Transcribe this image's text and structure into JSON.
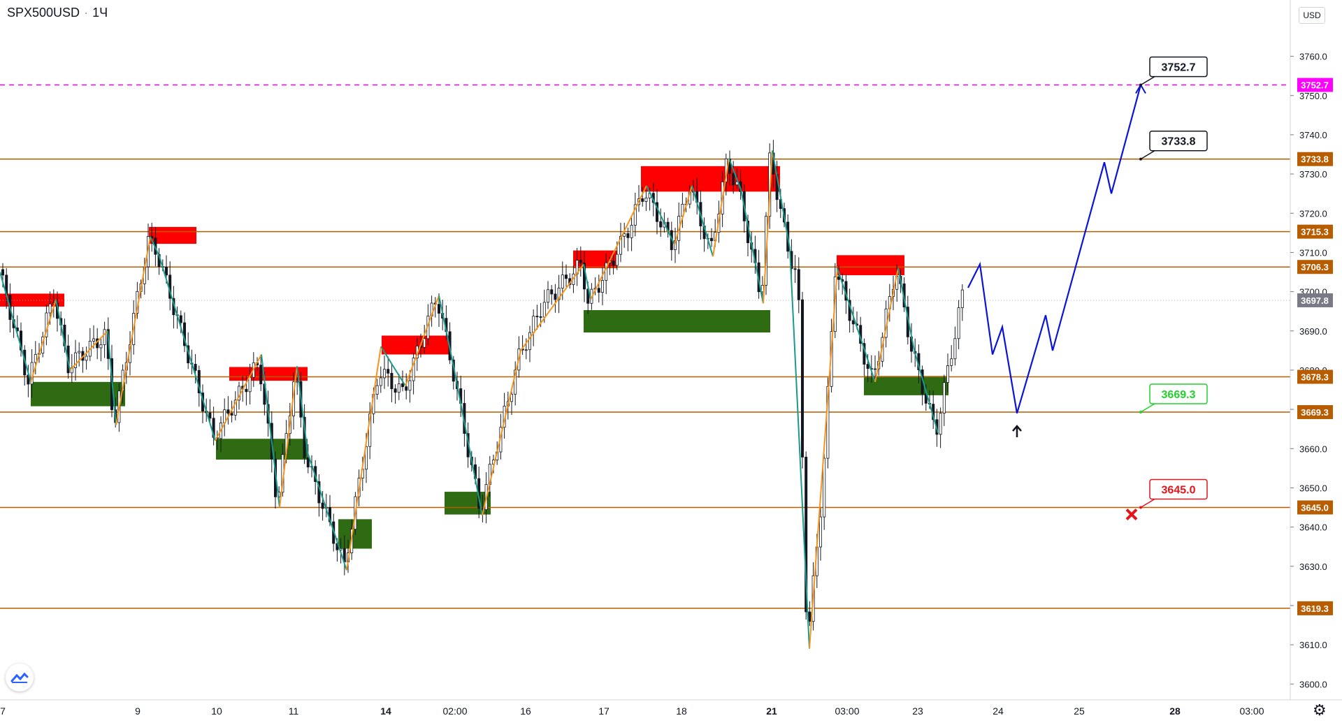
{
  "header": {
    "symbol": "SPX500USD",
    "separator": "·",
    "interval": "1Ч"
  },
  "price_axis": {
    "currency": "USD"
  },
  "colors": {
    "level_line": "#b85c00",
    "target_line": "#ff00ff",
    "zigzag_up": "#f7931a",
    "zigzag_down": "#1a9a8a",
    "forecast": "#0a14d8",
    "supply_zone": "#ff0000",
    "demand_zone": "#2e6b12",
    "last_price": "#787b86"
  },
  "chart_data": {
    "type": "candlestick",
    "y_ticks": [
      "3600.0",
      "3610.0",
      "3620.0",
      "3630.0",
      "3640.0",
      "3650.0",
      "3660.0",
      "3670.0",
      "3680.0",
      "3690.0",
      "3700.0",
      "3710.0",
      "3720.0",
      "3730.0",
      "3740.0",
      "3750.0",
      "3760.0"
    ],
    "x_ticks": [
      "7",
      "9",
      "10",
      "11",
      "14",
      "02:00",
      "16",
      "17",
      "18",
      "21",
      "03:00",
      "23",
      "24",
      "25",
      "28",
      "03:00"
    ],
    "x_ticks_bold": [
      "14",
      "21",
      "28"
    ],
    "ylim": [
      3596,
      3769
    ],
    "grid": false,
    "levels": [
      {
        "price": 3733.8,
        "label": "3733.8"
      },
      {
        "price": 3715.3,
        "label": "3715.3"
      },
      {
        "price": 3706.3,
        "label": "3706.3"
      },
      {
        "price": 3678.3,
        "label": "3678.3"
      },
      {
        "price": 3669.3,
        "label": "3669.3"
      },
      {
        "price": 3645.0,
        "label": "3645.0"
      },
      {
        "price": 3619.3,
        "label": "3619.3"
      }
    ],
    "target_level": {
      "price": 3752.7,
      "label": "3752.7"
    },
    "last_price": {
      "price": 3697.8,
      "label": "3697.8"
    },
    "annotations": [
      {
        "text": "3752.7",
        "price": 3752.7,
        "style": "target"
      },
      {
        "text": "3733.8",
        "price": 3733.8,
        "style": "target"
      },
      {
        "text": "3669.3",
        "price": 3669.3,
        "style": "entry"
      },
      {
        "text": "3645.0",
        "price": 3645.0,
        "style": "stop"
      }
    ],
    "forecast_path": [
      {
        "bar": 0,
        "price": 3701
      },
      {
        "bar": 1,
        "price": 3707
      },
      {
        "bar": 2,
        "price": 3684
      },
      {
        "bar": 3,
        "price": 3691
      },
      {
        "bar": 4,
        "price": 3669
      },
      {
        "bar": 5,
        "price": 3694
      },
      {
        "bar": 6,
        "price": 3685
      },
      {
        "bar": 7,
        "price": 3733
      },
      {
        "bar": 8,
        "price": 3725
      },
      {
        "bar": 9,
        "price": 3752.7
      }
    ]
  }
}
